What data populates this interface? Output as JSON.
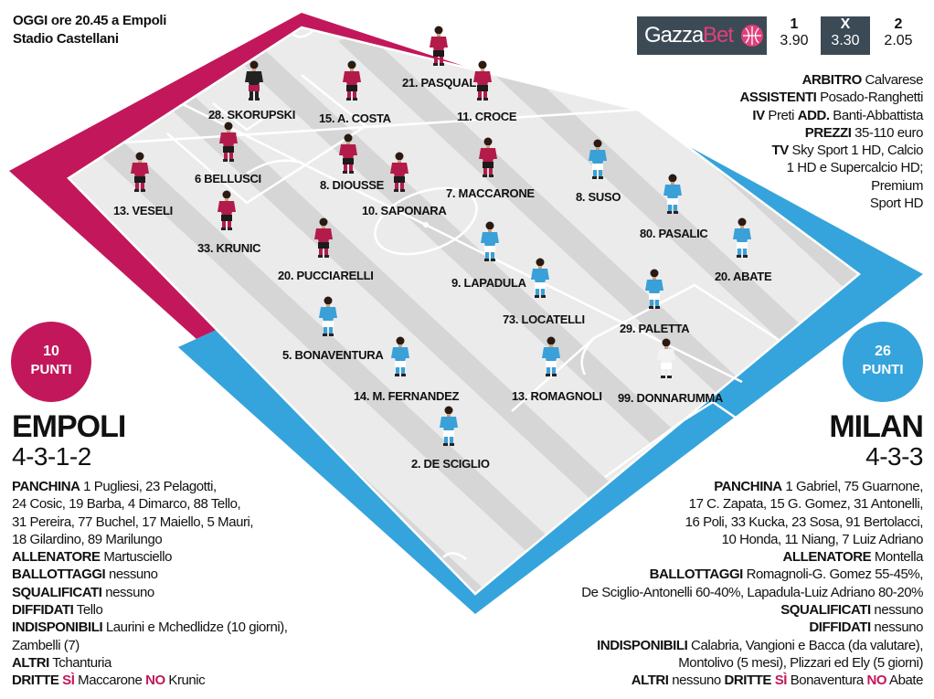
{
  "match": {
    "line1": "OGGI ore 20.45 a Empoli",
    "line2": "Stadio Castellani"
  },
  "betting": {
    "brand_a": "Gazza",
    "brand_b": "Bet",
    "odds": [
      {
        "key": "1",
        "value": "3.90"
      },
      {
        "key": "X",
        "value": "3.30"
      },
      {
        "key": "2",
        "value": "2.05"
      }
    ]
  },
  "officials": [
    {
      "parts": [
        {
          "b": "ARBITRO"
        },
        {
          "t": " Calvarese"
        }
      ]
    },
    {
      "parts": [
        {
          "b": "ASSISTENTI"
        },
        {
          "t": " Posado-Ranghetti"
        }
      ]
    },
    {
      "parts": [
        {
          "b": "IV"
        },
        {
          "t": " Preti "
        },
        {
          "b": "ADD."
        },
        {
          "t": " Banti-Abbattista"
        }
      ]
    },
    {
      "parts": [
        {
          "b": "PREZZI"
        },
        {
          "t": " 35-110 euro"
        }
      ]
    },
    {
      "parts": [
        {
          "b": "TV"
        },
        {
          "t": " Sky Sport 1 HD, Calcio"
        }
      ]
    },
    {
      "parts": [
        {
          "t": "1 HD e Supercalcio HD;"
        }
      ]
    },
    {
      "parts": [
        {
          "t": "Premium"
        }
      ]
    },
    {
      "parts": [
        {
          "t": "Sport HD"
        }
      ]
    }
  ],
  "colors": {
    "empoli": "#c2185b",
    "milan": "#35a4dc",
    "empoli_shirt": "#b31b4a",
    "milan_shirt": "#3aa0d8",
    "keeper_empoli": "#222222",
    "keeper_milan": "#f2f2f2",
    "pitch_light": "#ebebeb",
    "pitch_dark": "#d6d6d6",
    "bet_bg": "#3c4a55",
    "bet_ball": "#e0407a"
  },
  "empoli": {
    "points": "10",
    "points_label": "PUNTI",
    "name": "EMPOLI",
    "formation": "4-3-1-2",
    "info": [
      {
        "parts": [
          {
            "b": "PANCHINA"
          },
          {
            "t": " 1 Pugliesi, 23 Pelagotti,"
          }
        ]
      },
      {
        "parts": [
          {
            "t": "24 Cosic, 19 Barba, 4 Dimarco, 88 Tello,"
          }
        ]
      },
      {
        "parts": [
          {
            "t": "31 Pereira, 77 Buchel, 17 Maiello, 5 Mauri,"
          }
        ]
      },
      {
        "parts": [
          {
            "t": "18 Gilardino, 89 Marilungo"
          }
        ]
      },
      {
        "parts": [
          {
            "b": "ALLENATORE"
          },
          {
            "t": " Martusciello"
          }
        ]
      },
      {
        "parts": [
          {
            "b": "BALLOTTAGGI"
          },
          {
            "t": " nessuno"
          }
        ]
      },
      {
        "parts": [
          {
            "b": "SQUALIFICATI"
          },
          {
            "t": " nessuno"
          }
        ]
      },
      {
        "parts": [
          {
            "b": "DIFFIDATI"
          },
          {
            "t": " Tello"
          }
        ]
      },
      {
        "parts": [
          {
            "b": "INDISPONIBILI"
          },
          {
            "t": " Laurini e Mchedlidze (10 giorni),"
          }
        ]
      },
      {
        "parts": [
          {
            "t": "Zambelli (7)"
          }
        ]
      },
      {
        "parts": [
          {
            "b": "ALTRI"
          },
          {
            "t": " Tchanturia"
          }
        ]
      },
      {
        "parts": [
          {
            "b": "DRITTE"
          },
          {
            "s": " SÌ"
          },
          {
            "t": " Maccarone "
          },
          {
            "s": "NO"
          },
          {
            "t": " Krunic"
          }
        ]
      }
    ],
    "players": [
      {
        "label": "28. SKORUPSKI",
        "keeper": true
      },
      {
        "label": "13. VESELI"
      },
      {
        "label": "33. KRUNIC"
      },
      {
        "label": "6 BELLUSCI"
      },
      {
        "label": "15. A. COSTA"
      },
      {
        "label": "21. PASQUAL"
      },
      {
        "label": "11. CROCE"
      },
      {
        "label": "8. DIOUSSE"
      },
      {
        "label": "10. SAPONARA"
      },
      {
        "label": "7. MACCARONE"
      },
      {
        "label": "20. PUCCIARELLI"
      }
    ]
  },
  "milan": {
    "points": "26",
    "points_label": "PUNTI",
    "name": "MILAN",
    "formation": "4-3-3",
    "info": [
      {
        "parts": [
          {
            "b": "PANCHINA"
          },
          {
            "t": " 1 Gabriel, 75 Guarnone,"
          }
        ]
      },
      {
        "parts": [
          {
            "t": "17 C. Zapata, 15 G. Gomez, 31 Antonelli,"
          }
        ]
      },
      {
        "parts": [
          {
            "t": "16 Poli, 33 Kucka, 23 Sosa, 91 Bertolacci,"
          }
        ]
      },
      {
        "parts": [
          {
            "t": "10 Honda, 11 Niang, 7 Luiz Adriano"
          }
        ]
      },
      {
        "parts": [
          {
            "b": "ALLENATORE"
          },
          {
            "t": " Montella"
          }
        ]
      },
      {
        "parts": [
          {
            "b": "BALLOTTAGGI"
          },
          {
            "t": " Romagnoli-G. Gomez 55-45%,"
          }
        ]
      },
      {
        "parts": [
          {
            "t": "De Sciglio-Antonelli 60-40%, Lapadula-Luiz Adriano 80-20%"
          }
        ]
      },
      {
        "parts": [
          {
            "b": "SQUALIFICATI"
          },
          {
            "t": " nessuno"
          }
        ]
      },
      {
        "parts": [
          {
            "b": "DIFFIDATI"
          },
          {
            "t": " nessuno"
          }
        ]
      },
      {
        "parts": [
          {
            "b": "INDISPONIBILI"
          },
          {
            "t": " Calabria, Vangioni e Bacca (da valutare),"
          }
        ]
      },
      {
        "parts": [
          {
            "t": "Montolivo (5 mesi), Plizzari ed Ely (5 giorni)"
          }
        ]
      },
      {
        "parts": [
          {
            "b": "ALTRI"
          },
          {
            "t": " nessuno "
          },
          {
            "b": "DRITTE"
          },
          {
            "s": " SÌ"
          },
          {
            "t": " Bonaventura "
          },
          {
            "s": "NO"
          },
          {
            "t": " Abate"
          }
        ]
      }
    ],
    "players": [
      {
        "label": "8. SUSO"
      },
      {
        "label": "80. PASALIC"
      },
      {
        "label": "20. ABATE"
      },
      {
        "label": "9. LAPADULA"
      },
      {
        "label": "73. LOCATELLI"
      },
      {
        "label": "29. PALETTA"
      },
      {
        "label": "5. BONAVENTURA"
      },
      {
        "label": "14. M. FERNANDEZ"
      },
      {
        "label": "13. ROMAGNOLI"
      },
      {
        "label": "99. DONNARUMMA",
        "keeper": true
      },
      {
        "label": "2. DE SCIGLIO"
      }
    ]
  }
}
